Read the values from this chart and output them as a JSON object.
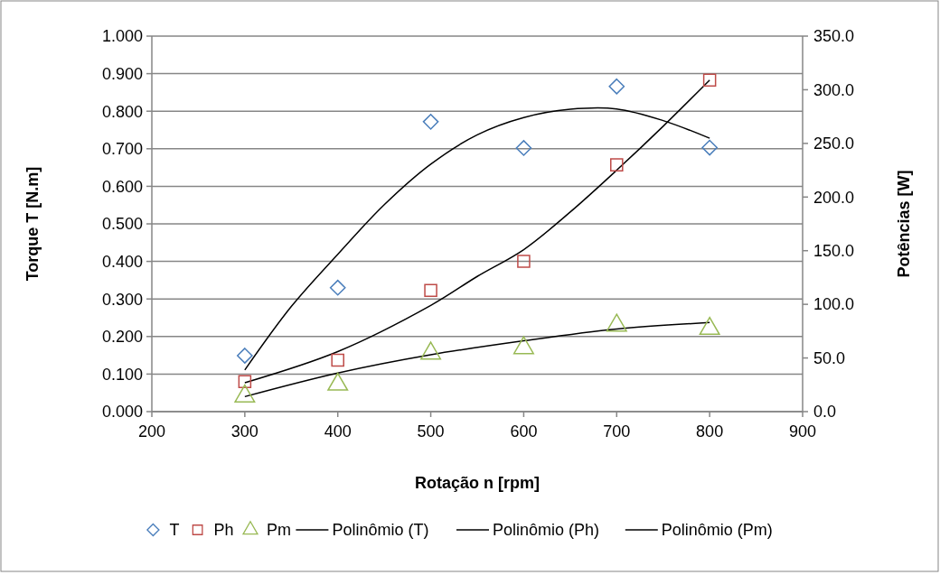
{
  "chart_data": {
    "type": "scatter",
    "xlabel": "Rotação n [rpm]",
    "ylabel": "Torque T [N.m]",
    "y2label": "Potências [W]",
    "xlim": [
      200,
      900
    ],
    "xticks": [
      200,
      300,
      400,
      500,
      600,
      700,
      800,
      900
    ],
    "ylim": [
      0,
      1
    ],
    "yticks": [
      {
        "value": 0,
        "label": "0.000"
      },
      {
        "value": 0.1,
        "label": "0.100"
      },
      {
        "value": 0.2,
        "label": "0.200"
      },
      {
        "value": 0.3,
        "label": "0.300"
      },
      {
        "value": 0.4,
        "label": "0.400"
      },
      {
        "value": 0.5,
        "label": "0.500"
      },
      {
        "value": 0.6,
        "label": "0.600"
      },
      {
        "value": 0.7,
        "label": "0.700"
      },
      {
        "value": 0.8,
        "label": "0.800"
      },
      {
        "value": 0.9,
        "label": "0.900"
      },
      {
        "value": 1,
        "label": "1.000"
      }
    ],
    "y2lim": [
      0,
      350
    ],
    "y2ticks": [
      {
        "value": 0,
        "label": "0.0"
      },
      {
        "value": 50,
        "label": "50.0"
      },
      {
        "value": 100,
        "label": "100.0"
      },
      {
        "value": 150,
        "label": "150.0"
      },
      {
        "value": 200,
        "label": "200.0"
      },
      {
        "value": 250,
        "label": "250.0"
      },
      {
        "value": 300,
        "label": "300.0"
      },
      {
        "value": 350,
        "label": "350.0"
      }
    ],
    "grid": "y",
    "legend": "bottom",
    "series": [
      {
        "name": "T",
        "marker": "diamond",
        "color": "#4a7ebb",
        "x": [
          300,
          400,
          500,
          600,
          700,
          800
        ],
        "values": [
          0.149,
          0.33,
          0.772,
          0.702,
          0.866,
          0.703
        ]
      },
      {
        "name": "Ph",
        "marker": "square",
        "color": "#be4b48",
        "axis": "y2",
        "x": [
          300,
          400,
          500,
          600,
          700,
          800
        ],
        "values": [
          28,
          48,
          113,
          140,
          230,
          309
        ]
      },
      {
        "name": "Pm",
        "marker": "triangle",
        "color": "#98b954",
        "axis": "y2",
        "x": [
          300,
          400,
          500,
          600,
          700,
          800
        ],
        "values": [
          16,
          27,
          56,
          61,
          82,
          79
        ]
      },
      {
        "name": "Polinômio (T)",
        "type": "line",
        "marker": "none",
        "color": "#000000",
        "x": [
          300,
          350,
          400,
          450,
          500,
          550,
          600,
          650,
          700,
          750,
          800
        ],
        "values": [
          0.111,
          0.28,
          0.419,
          0.551,
          0.659,
          0.737,
          0.783,
          0.805,
          0.806,
          0.775,
          0.728
        ]
      },
      {
        "name": "Polinômio (Ph)",
        "type": "line",
        "marker": "none",
        "color": "#000000",
        "axis": "y2",
        "x": [
          300,
          400,
          500,
          550,
          600,
          650,
          700,
          750,
          800
        ],
        "values": [
          27,
          56,
          99,
          126,
          151,
          186,
          225,
          266,
          309
        ]
      },
      {
        "name": "Polinômio (Pm)",
        "type": "line",
        "marker": "none",
        "color": "#000000",
        "axis": "y2",
        "x": [
          300,
          400,
          500,
          600,
          700,
          800
        ],
        "values": [
          14,
          36,
          53,
          66,
          77,
          83
        ]
      }
    ]
  }
}
